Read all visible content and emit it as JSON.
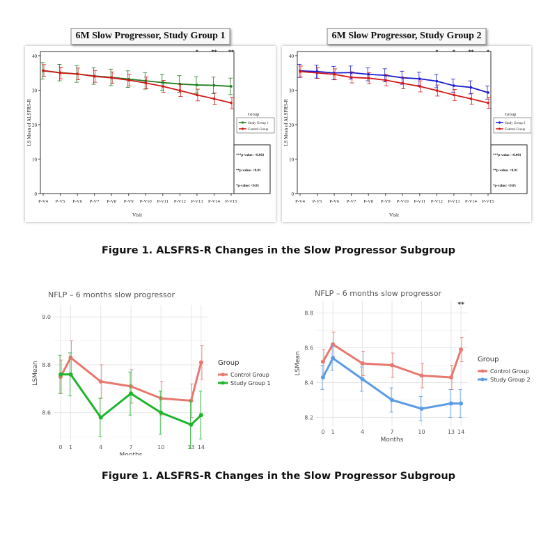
{
  "captions": {
    "top": "Figure 1. ALSFRS-R Changes in the Slow Progressor Subgroup",
    "bottom": "Figure 1. ALSFRS-R Changes in the Slow Progressor Subgroup"
  },
  "chart_data": [
    {
      "type": "line",
      "title": "6M Slow Progressor, Study Group 1",
      "xlabel": "Visit",
      "ylabel": "LS Mean of ALSFRS-R",
      "categories": [
        "P-V4",
        "P-V5",
        "P-V6",
        "P-V7",
        "P-V8",
        "P-V9",
        "P-V10",
        "P-V11",
        "P-V12",
        "P-V13",
        "P-V14",
        "P-V15"
      ],
      "ylim": [
        0,
        40
      ],
      "yticks": [
        0,
        10,
        20,
        30,
        40
      ],
      "legend_title": "Group",
      "series": [
        {
          "name": "Study Group 1",
          "color": "#1e7d1e",
          "values": [
            35.6,
            35.1,
            34.7,
            34.1,
            33.7,
            33.2,
            32.7,
            32.2,
            31.8,
            31.5,
            31.4,
            31.1
          ],
          "err": 2.4
        },
        {
          "name": "Control Group",
          "color": "#d01818",
          "values": [
            35.7,
            35.0,
            34.7,
            34.0,
            33.6,
            32.9,
            32.1,
            31.1,
            29.9,
            28.6,
            27.5,
            26.3
          ],
          "err": 1.7
        }
      ],
      "significance": [
        {
          "category": "P-V13",
          "label": "*"
        },
        {
          "category": "P-V14",
          "label": "**"
        },
        {
          "category": "P-V15",
          "label": "**"
        }
      ],
      "pvalue_notes": [
        "***p-value: <0.001",
        "**p-value: <0.01",
        "*p-value: <0.05"
      ]
    },
    {
      "type": "line",
      "title": "6M Slow Progressor, Study Group 2",
      "xlabel": "Visit",
      "ylabel": "LS Mean of ALSFRS-R",
      "categories": [
        "P-V4",
        "P-V5",
        "P-V6",
        "P-V7",
        "P-V8",
        "P-V9",
        "P-V10",
        "P-V11",
        "P-V12",
        "P-V13",
        "P-V14",
        "P-V15"
      ],
      "ylim": [
        0,
        40
      ],
      "yticks": [
        0,
        10,
        20,
        30,
        40
      ],
      "legend_title": "Group",
      "series": [
        {
          "name": "Study Group 2",
          "color": "#1a1ad0",
          "values": [
            35.6,
            35.4,
            35.0,
            35.1,
            34.6,
            34.3,
            33.6,
            33.3,
            32.6,
            31.3,
            30.8,
            29.3
          ],
          "err": 1.9
        },
        {
          "name": "Control Group",
          "color": "#d01818",
          "values": [
            35.4,
            35.0,
            34.6,
            33.7,
            33.5,
            32.9,
            32.0,
            31.1,
            29.9,
            28.6,
            27.5,
            26.3
          ],
          "err": 1.6
        }
      ],
      "significance": [
        {
          "category": "P-V12",
          "label": "*"
        },
        {
          "category": "P-V13",
          "label": "*"
        },
        {
          "category": "P-V14",
          "label": "**"
        },
        {
          "category": "P-V15",
          "label": "*"
        }
      ],
      "pvalue_notes": [
        "***p-value: <0.001",
        "**p-value: <0.01",
        "*p-value: <0.05"
      ]
    },
    {
      "type": "line",
      "title": "NFLP – 6 months slow progressor",
      "xlabel": "Months",
      "ylabel": "LSMean",
      "x": [
        0,
        1,
        4,
        7,
        10,
        13,
        14
      ],
      "ylim": [
        8.48,
        9.05
      ],
      "yticks": [
        8.6,
        8.8,
        9.0
      ],
      "legend_title": "Group",
      "series": [
        {
          "name": "Control Group",
          "color": "#e8776e",
          "values": [
            8.75,
            8.83,
            8.73,
            8.71,
            8.66,
            8.65,
            8.81
          ],
          "err": [
            0.07,
            0.07,
            0.07,
            0.07,
            0.07,
            0.07,
            0.07
          ]
        },
        {
          "name": "Study Group 1",
          "color": "#1eb52c",
          "values": [
            8.76,
            8.76,
            8.58,
            8.68,
            8.6,
            8.55,
            8.59
          ],
          "err": [
            0.08,
            0.09,
            0.08,
            0.09,
            0.09,
            0.1,
            0.1
          ]
        }
      ]
    },
    {
      "type": "line",
      "title": "NFLP – 6 months slow progressor",
      "xlabel": "Months",
      "ylabel": "LSMean",
      "x": [
        0,
        1,
        4,
        7,
        10,
        13,
        14
      ],
      "ylim": [
        8.15,
        8.87
      ],
      "yticks": [
        8.2,
        8.4,
        8.6,
        8.8
      ],
      "legend_title": "Group",
      "series": [
        {
          "name": "Control Group",
          "color": "#e8776e",
          "values": [
            8.52,
            8.62,
            8.51,
            8.5,
            8.44,
            8.43,
            8.59
          ],
          "err": [
            0.07,
            0.07,
            0.07,
            0.07,
            0.07,
            0.07,
            0.07
          ]
        },
        {
          "name": "Study Group 2",
          "color": "#5b9be6",
          "values": [
            8.43,
            8.54,
            8.42,
            8.3,
            8.25,
            8.28,
            8.28
          ],
          "err": [
            0.07,
            0.07,
            0.07,
            0.07,
            0.07,
            0.08,
            0.08
          ]
        }
      ],
      "significance": [
        {
          "x": 14,
          "label": "**"
        }
      ]
    }
  ]
}
